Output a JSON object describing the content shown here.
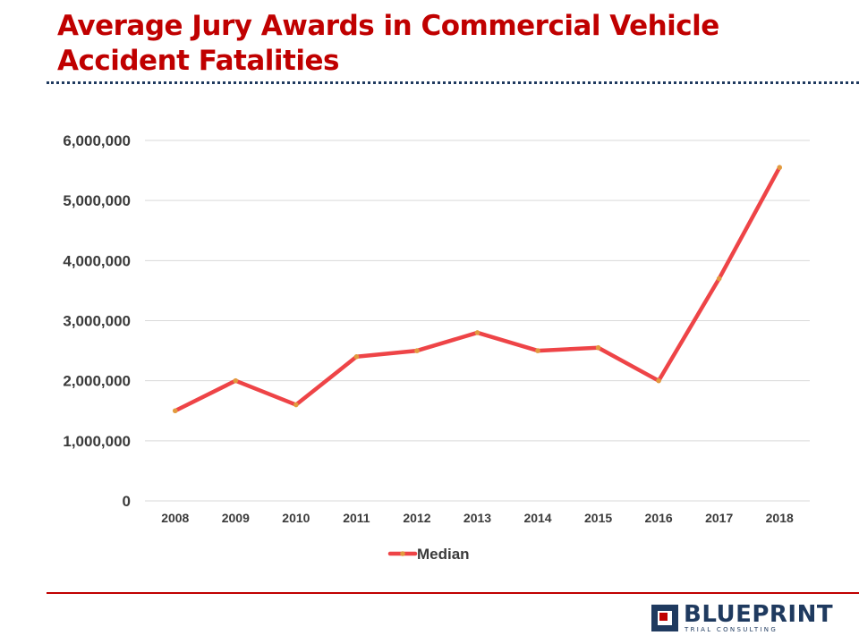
{
  "slide": {
    "title_lines": [
      "Average Jury Awards in Commercial Vehicle",
      "Accident Fatalities"
    ],
    "brand": {
      "name": "BLUEPRINT",
      "tagline": "TRIAL CONSULTING"
    }
  },
  "colors": {
    "title": "#c00000",
    "rule_dotted": "#1f3a5f",
    "rule_bottom": "#c00000",
    "brand_navy": "#1f3a5f",
    "brand_red": "#c00000",
    "line": "#ee4447",
    "marker": "#e29a3e",
    "grid": "#d9d9d9",
    "axis_text": "#3b3b3b"
  },
  "chart_data": {
    "type": "line",
    "x": [
      "2008",
      "2009",
      "2010",
      "2011",
      "2012",
      "2013",
      "2014",
      "2015",
      "2016",
      "2017",
      "2018"
    ],
    "series": [
      {
        "name": "Median",
        "values": [
          1500000,
          2000000,
          1600000,
          2400000,
          2500000,
          2800000,
          2500000,
          2550000,
          2000000,
          3700000,
          5550000
        ]
      }
    ],
    "ylim": [
      0,
      6000000
    ],
    "yticks": [
      0,
      1000000,
      2000000,
      3000000,
      4000000,
      5000000,
      6000000
    ],
    "ytick_labels": [
      "0",
      "1,000,000",
      "2,000,000",
      "3,000,000",
      "4,000,000",
      "5,000,000",
      "6,000,000"
    ],
    "grid": true,
    "legend": "bottom"
  }
}
